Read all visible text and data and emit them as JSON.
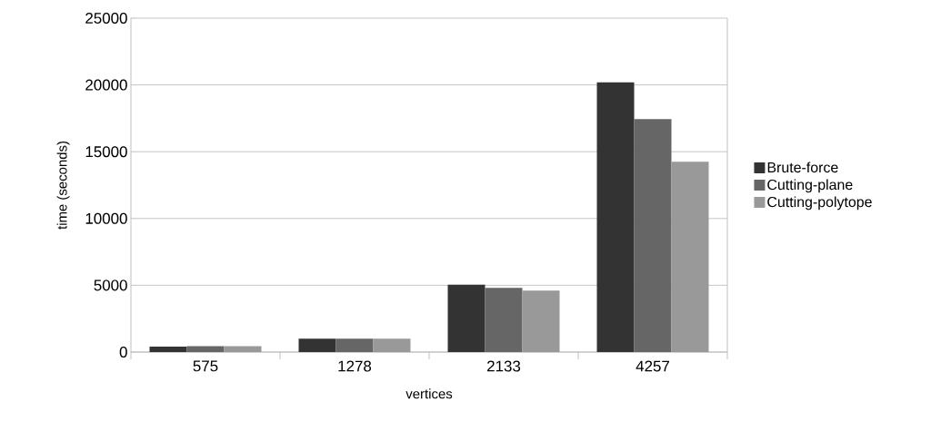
{
  "chart_data": {
    "type": "bar",
    "xlabel": "vertices",
    "ylabel": "time (seconds)",
    "categories": [
      "575",
      "1278",
      "2133",
      "4257"
    ],
    "series": [
      {
        "name": "Brute-force",
        "color": "#333333",
        "values": [
          400,
          1000,
          5050,
          20200
        ]
      },
      {
        "name": "Cutting-plane",
        "color": "#666666",
        "values": [
          450,
          1000,
          4800,
          17450
        ]
      },
      {
        "name": "Cutting-polytope",
        "color": "#999999",
        "values": [
          450,
          1000,
          4600,
          14250
        ]
      }
    ],
    "ylim": [
      0,
      25000
    ],
    "yticks": [
      0,
      5000,
      10000,
      15000,
      20000,
      25000
    ],
    "grid": "y",
    "legend": "right"
  }
}
